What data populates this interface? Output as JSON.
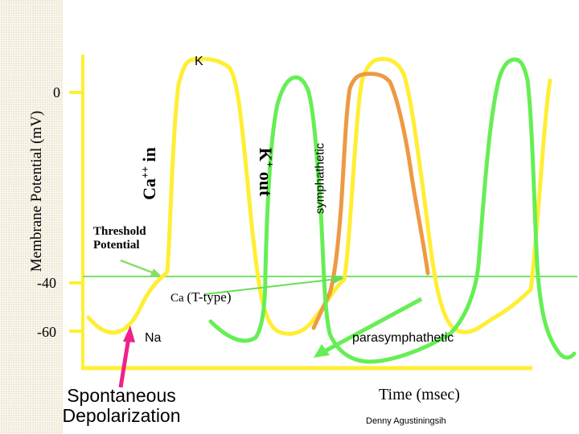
{
  "axis": {
    "ylabel": "Membrane Potential (mV)",
    "xlabel": "Time (msec)",
    "ticks": [
      {
        "label": "0",
        "value": 0
      },
      {
        "label": "-40",
        "value": -40
      },
      {
        "label": "-60",
        "value": -60
      }
    ]
  },
  "labels": {
    "k_top": "K",
    "ca_in": "Ca",
    "ca_in_sup": "++",
    "ca_in_suffix": " in",
    "k_out": "K",
    "k_out_sup": "+",
    "k_out_suffix": " out",
    "sympathetic": "symphathetic",
    "threshold_line1": "Threshold",
    "threshold_line2": "Potential",
    "ca_ttype_prefix": "Ca",
    "ca_ttype_suffix": "(T-type)",
    "na": "Na",
    "parasympathetic": "parasymphathetic",
    "spontaneous_line1": "Spontaneous",
    "spontaneous_line2": "Depolarization",
    "author": "Denny Agustiningsih"
  },
  "colors": {
    "yellow": "#ffee33",
    "green": "#66ee55",
    "orange": "#ee9944",
    "threshold": "#66dd55",
    "arrow_pink": "#ee2288",
    "arrow_green": "#88dd66",
    "tick": "#ffee33"
  }
}
